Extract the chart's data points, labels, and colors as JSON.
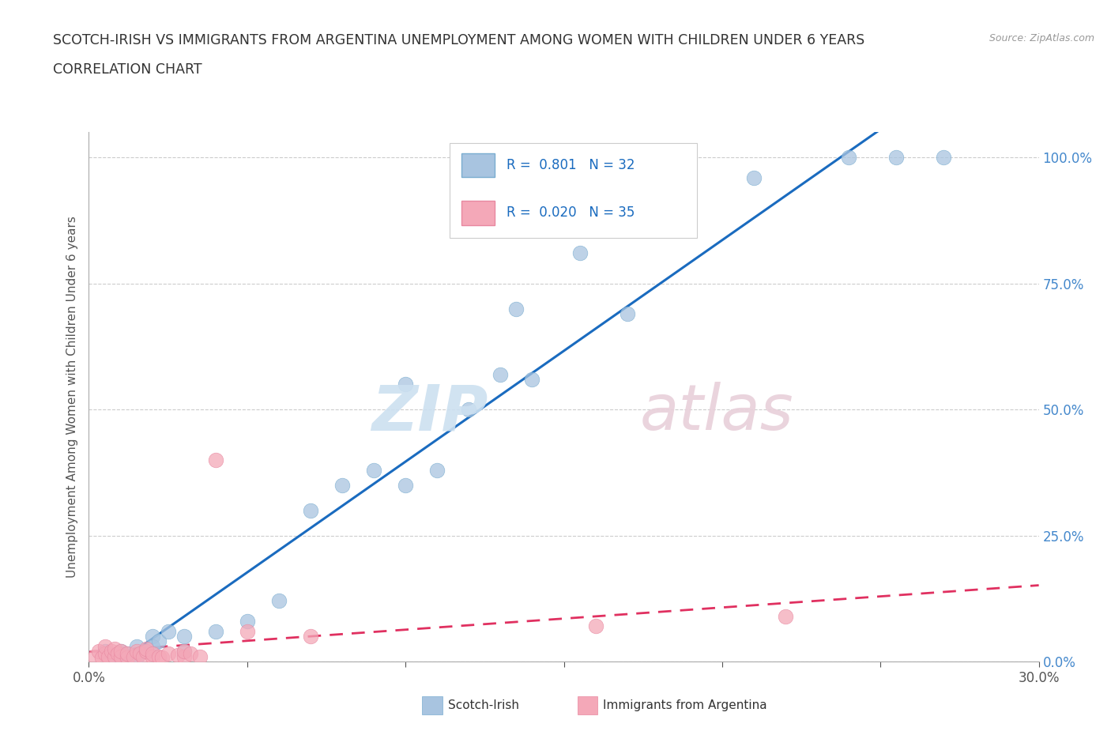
{
  "title_line1": "SCOTCH-IRISH VS IMMIGRANTS FROM ARGENTINA UNEMPLOYMENT AMONG WOMEN WITH CHILDREN UNDER 6 YEARS",
  "title_line2": "CORRELATION CHART",
  "source_text": "Source: ZipAtlas.com",
  "ylabel": "Unemployment Among Women with Children Under 6 years",
  "x_tick_labels": [
    "0.0%",
    "",
    "",
    "",
    "",
    "",
    "30.0%"
  ],
  "x_ticks": [
    0.0,
    0.05,
    0.1,
    0.15,
    0.2,
    0.25,
    0.3
  ],
  "y_ticks": [
    0.0,
    0.25,
    0.5,
    0.75,
    1.0
  ],
  "y_tick_labels": [
    "0.0%",
    "25.0%",
    "50.0%",
    "75.0%",
    "100.0%"
  ],
  "xlim": [
    0.0,
    0.3
  ],
  "ylim": [
    0.0,
    1.05
  ],
  "background_color": "#ffffff",
  "grid_color": "#cccccc",
  "scotch_irish_color": "#a8c4e0",
  "scotch_irish_edge_color": "#7aadd0",
  "argentina_color": "#f4a8b8",
  "argentina_edge_color": "#e888a0",
  "scotch_irish_line_color": "#1a6bbf",
  "argentina_line_color": "#e03060",
  "legend_R1": "0.801",
  "legend_N1": "32",
  "legend_R2": "0.020",
  "legend_N2": "35",
  "scotch_irish_x": [
    0.005,
    0.008,
    0.01,
    0.012,
    0.015,
    0.015,
    0.018,
    0.02,
    0.02,
    0.022,
    0.025,
    0.03,
    0.03,
    0.04,
    0.05,
    0.06,
    0.07,
    0.08,
    0.09,
    0.1,
    0.1,
    0.11,
    0.12,
    0.13,
    0.135,
    0.14,
    0.155,
    0.17,
    0.21,
    0.24,
    0.255,
    0.27
  ],
  "scotch_irish_y": [
    0.02,
    0.01,
    0.02,
    0.015,
    0.01,
    0.03,
    0.02,
    0.05,
    0.03,
    0.04,
    0.06,
    0.02,
    0.05,
    0.06,
    0.08,
    0.12,
    0.3,
    0.35,
    0.38,
    0.55,
    0.35,
    0.38,
    0.5,
    0.57,
    0.7,
    0.56,
    0.81,
    0.69,
    0.96,
    1.0,
    1.0,
    1.0
  ],
  "argentina_x": [
    0.002,
    0.003,
    0.004,
    0.005,
    0.005,
    0.006,
    0.007,
    0.008,
    0.008,
    0.009,
    0.01,
    0.01,
    0.012,
    0.012,
    0.014,
    0.015,
    0.016,
    0.017,
    0.018,
    0.018,
    0.02,
    0.02,
    0.022,
    0.023,
    0.025,
    0.028,
    0.03,
    0.03,
    0.032,
    0.035,
    0.04,
    0.05,
    0.07,
    0.16,
    0.22
  ],
  "argentina_y": [
    0.01,
    0.02,
    0.008,
    0.015,
    0.03,
    0.01,
    0.02,
    0.01,
    0.025,
    0.015,
    0.01,
    0.02,
    0.008,
    0.015,
    0.01,
    0.02,
    0.015,
    0.01,
    0.02,
    0.025,
    0.01,
    0.015,
    0.01,
    0.008,
    0.015,
    0.012,
    0.01,
    0.02,
    0.015,
    0.01,
    0.4,
    0.06,
    0.05,
    0.07,
    0.09
  ]
}
